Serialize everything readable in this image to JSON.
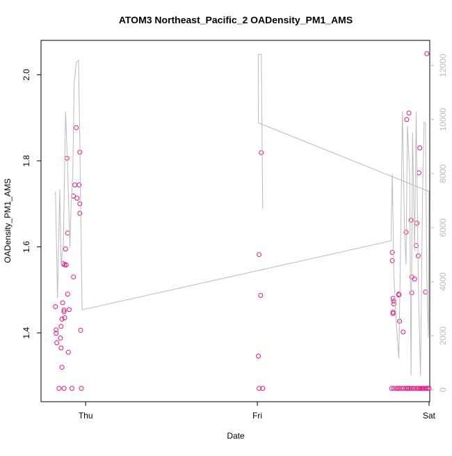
{
  "chart_data": {
    "type": "scatter",
    "title": "ATOM3 Northeast_Pacific_2 OADensity_PM1_AMS",
    "x_label": "Date",
    "y_label": "OADensity_PM1_AMS",
    "xlim": [
      -0.26,
      2.004
    ],
    "xticks": [
      {
        "value": 0,
        "label": "Thu"
      },
      {
        "value": 1,
        "label": "Fri"
      },
      {
        "value": 2,
        "label": "Sat"
      }
    ],
    "ylim": [
      1.24,
      2.08
    ],
    "yticks": [
      1.4,
      1.6,
      1.8,
      {
        "value": 2,
        "label": "2.0"
      }
    ],
    "y2lim": [
      -440,
      12930
    ],
    "y2ticks": [
      0,
      2000,
      4000,
      6000,
      8000,
      10000,
      12000
    ],
    "y2_color": "#bbbbbb",
    "series": [
      {
        "type": "scatter",
        "color": "#e8137f",
        "x": [
          -0.176,
          -0.172,
          -0.172,
          -0.168,
          -0.155,
          -0.147,
          -0.143,
          -0.143,
          -0.138,
          -0.138,
          -0.134,
          -0.13,
          -0.126,
          -0.126,
          -0.122,
          -0.126,
          -0.122,
          -0.117,
          -0.113,
          -0.109,
          -0.105,
          -0.105,
          -0.101,
          -0.096,
          -0.08,
          -0.071,
          -0.071,
          -0.063,
          -0.055,
          -0.05,
          -0.038,
          -0.034,
          -0.034,
          -0.034,
          -0.029,
          -0.025,
          1.031,
          1.01,
          1.006,
          1.01,
          1.019,
          1.023,
          1.782,
          1.795,
          1.811,
          1.82,
          1.828,
          1.841,
          1.853,
          1.866,
          1.874,
          1.878,
          1.887,
          1.899,
          1.908,
          1.916,
          1.929,
          1.937,
          1.946,
          1.954,
          1.962,
          1.966,
          1.975,
          1.983,
          1.992,
          2.0,
          1.786,
          1.786,
          1.79,
          1.79,
          1.795,
          1.79,
          1.795,
          1.824,
          1.824,
          1.828,
          1.849,
          1.866,
          1.87,
          1.883,
          1.895,
          1.899,
          1.899,
          1.916,
          1.925,
          1.929,
          1.937,
          1.941,
          1.946,
          1.979,
          1.987
        ],
        "values": [
          1.461,
          1.407,
          1.399,
          1.377,
          1.271,
          1.388,
          1.415,
          1.365,
          1.432,
          1.32,
          1.47,
          1.561,
          1.453,
          1.449,
          1.435,
          1.271,
          1.558,
          1.595,
          1.558,
          1.806,
          1.632,
          1.49,
          1.355,
          1.454,
          1.271,
          1.53,
          1.718,
          1.744,
          1.877,
          1.713,
          1.744,
          1.7,
          1.678,
          1.82,
          1.406,
          1.271,
          1.271,
          1.271,
          1.346,
          1.582,
          1.487,
          1.819,
          1.271,
          1.271,
          1.271,
          1.271,
          1.271,
          1.271,
          1.271,
          1.271,
          1.271,
          1.271,
          1.271,
          1.271,
          1.271,
          1.271,
          1.271,
          1.271,
          1.271,
          1.271,
          1.271,
          1.271,
          1.271,
          1.271,
          1.271,
          1.271,
          1.587,
          1.568,
          1.48,
          1.448,
          1.467,
          1.445,
          1.474,
          1.49,
          1.488,
          1.427,
          1.402,
          1.634,
          1.896,
          1.911,
          1.662,
          1.493,
          1.53,
          1.525,
          1.603,
          1.655,
          1.579,
          1.772,
          1.83,
          1.495,
          2.049
        ]
      },
      {
        "type": "line",
        "axis": "y2",
        "color": "#bbbbbb",
        "x": [
          -0.176,
          -0.164,
          -0.151,
          -0.143,
          -0.13,
          -0.117,
          -0.105,
          -0.092,
          -0.084,
          -0.075,
          -0.067,
          -0.055,
          -0.042,
          -0.034,
          -0.021,
          1.778,
          1.786,
          1.795,
          1.811,
          1.824,
          1.832,
          1.845,
          1.857,
          1.866,
          1.874,
          1.887,
          1.895,
          1.904,
          1.916,
          1.925,
          1.937,
          1.95,
          1.962,
          1.971,
          1.979,
          1.987,
          1.996,
          2.0,
          1.006,
          1.006,
          1.023,
          1.031
        ],
        "values": [
          7340,
          3400,
          7410,
          4630,
          5400,
          10300,
          8240,
          5280,
          6950,
          7980,
          11330,
          12100,
          12200,
          9270,
          2960,
          5510,
          7980,
          4250,
          2320,
          1160,
          4380,
          10300,
          5920,
          4630,
          9780,
          7980,
          520,
          9520,
          5150,
          10300,
          4120,
          520,
          7210,
          9910,
          9880,
          4120,
          1930,
          7340,
          9880,
          12410,
          12410,
          6690
        ]
      }
    ]
  }
}
